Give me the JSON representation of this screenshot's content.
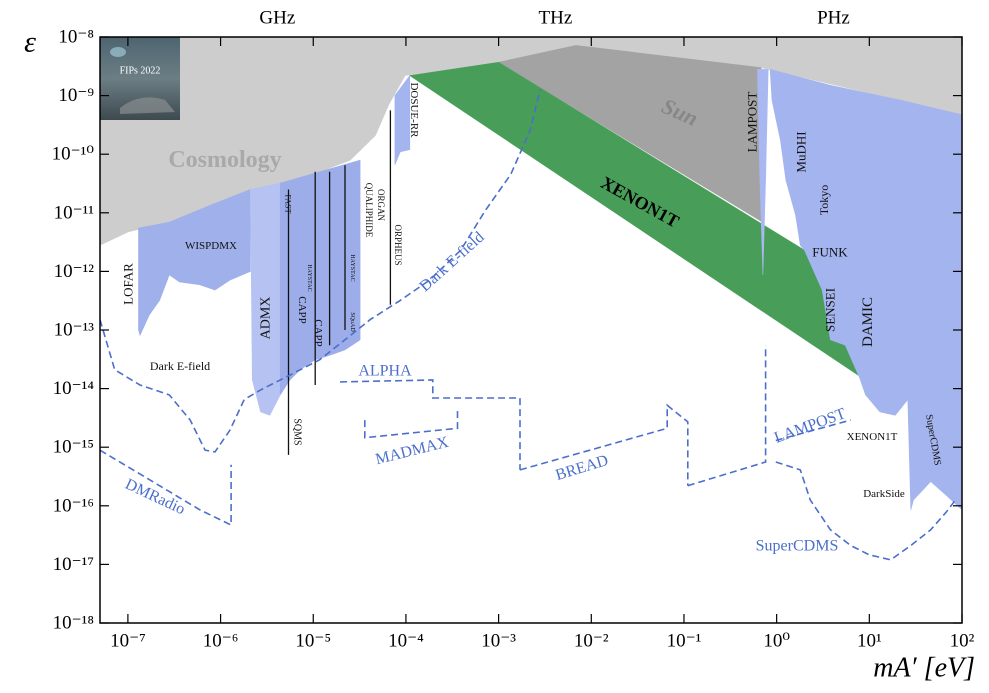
{
  "chart_data": {
    "type": "exclusion",
    "ylabel": "ε",
    "xlabel": "mA′ [eV]",
    "log_x": true,
    "log_y": true,
    "xlim": [
      5e-08,
      100
    ],
    "ylim": [
      1e-18,
      1e-08
    ],
    "xticks": [
      {
        "value": 1e-07,
        "label": "10⁻⁷"
      },
      {
        "value": 1e-06,
        "label": "10⁻⁶"
      },
      {
        "value": 1e-05,
        "label": "10⁻⁵"
      },
      {
        "value": 0.0001,
        "label": "10⁻⁴"
      },
      {
        "value": 0.001,
        "label": "10⁻³"
      },
      {
        "value": 0.01,
        "label": "10⁻²"
      },
      {
        "value": 0.1,
        "label": "10⁻¹"
      },
      {
        "value": 1,
        "label": "10⁰"
      },
      {
        "value": 10,
        "label": "10¹"
      },
      {
        "value": 100,
        "label": "10²"
      }
    ],
    "yticks": [
      {
        "value": 1e-08,
        "label": "10⁻⁸"
      },
      {
        "value": 1e-09,
        "label": "10⁻⁹"
      },
      {
        "value": 1e-10,
        "label": "10⁻¹⁰"
      },
      {
        "value": 1e-11,
        "label": "10⁻¹¹"
      },
      {
        "value": 1e-12,
        "label": "10⁻¹²"
      },
      {
        "value": 1e-13,
        "label": "10⁻¹³"
      },
      {
        "value": 1e-14,
        "label": "10⁻¹⁴"
      },
      {
        "value": 1e-15,
        "label": "10⁻¹⁵"
      },
      {
        "value": 1e-16,
        "label": "10⁻¹⁶"
      },
      {
        "value": 1e-17,
        "label": "10⁻¹⁷"
      },
      {
        "value": 1e-18,
        "label": "10⁻¹⁸"
      }
    ],
    "x2ticks": [
      {
        "value": 4.1e-06,
        "label": "GHz"
      },
      {
        "value": 0.0041,
        "label": "THz"
      },
      {
        "value": 4.1,
        "label": "PHz"
      }
    ],
    "regions": [
      {
        "name": "Cosmology",
        "color": "#cdcdcd",
        "x": [
          5e-08,
          1e-07,
          2.8e-07,
          7.8e-07,
          2.1e-06,
          4.4e-06,
          1.17e-05,
          2.5e-05,
          4.7e-05,
          6.5e-05,
          9.8e-05,
          0.001,
          0.0068,
          0.68,
          100,
          100,
          5e-08
        ],
        "y": [
          2.8e-12,
          4.7e-12,
          6.9e-12,
          1.35e-11,
          2.5e-11,
          3.2e-11,
          5e-11,
          7.9e-11,
          2.1e-10,
          6.9e-10,
          2.2e-09,
          3.7e-09,
          7.2e-09,
          3e-09,
          4.7e-10,
          1e-08,
          1e-08
        ]
      },
      {
        "name": "Sun",
        "color": "#a3a3a3",
        "x": [
          0.001,
          0.0068,
          0.68,
          0.68
        ],
        "y": [
          3.7e-09,
          7.2e-09,
          3e-09,
          7.2e-12
        ]
      },
      {
        "name": "XENON1T",
        "color": "#489e59",
        "x": [
          0.00011,
          0.001,
          2.0,
          8.5
        ],
        "y": [
          2.2e-09,
          3.7e-09,
          2.3e-12,
          1.5e-14
        ]
      },
      {
        "name": "DAMIC",
        "color": "#a4b4ee",
        "x": [
          0.85,
          3.8,
          22,
          100,
          100,
          68,
          46,
          30,
          28,
          26,
          19,
          13,
          9.1,
          7.9,
          5.5,
          3.8,
          3.1,
          2.0,
          1.8,
          1.6,
          1.26,
          1.1,
          0.89
        ],
        "y": [
          2.8e-09,
          1.5e-09,
          8.3e-10,
          4.7e-10,
          8.5e-17,
          1.5e-16,
          2.6e-16,
          1.26e-16,
          8.5e-17,
          6.5e-15,
          3.5e-15,
          4e-15,
          7.8e-15,
          1.5e-14,
          5.5e-14,
          6.8e-14,
          4.8e-13,
          2.3e-12,
          2.8e-12,
          9.1e-12,
          3.6e-11,
          1.7e-10,
          8.3e-10
        ]
      },
      {
        "name": "LAMPOST",
        "color": "#a9b8f0",
        "x": [
          0.62,
          0.81,
          0.76,
          0.71,
          0.66
        ],
        "y": [
          2.8e-09,
          2.8e-09,
          3.6e-11,
          8.7e-13,
          3.6e-11
        ]
      },
      {
        "name": "WISPDMX",
        "color": "#9fb0ea",
        "x": [
          1.3e-07,
          2.8e-07,
          7.8e-07,
          2.1e-06,
          2.1e-06,
          1.26e-06,
          8.7e-07,
          6e-07,
          3.6e-07,
          2.8e-07,
          2.2e-07,
          1.7e-07,
          1.35e-07,
          1.3e-07
        ],
        "y": [
          5.5e-12,
          6.9e-12,
          1.35e-11,
          2.5e-11,
          1e-12,
          7.1e-13,
          4.8e-13,
          5.9e-13,
          6.6e-13,
          8.7e-13,
          3.2e-13,
          1.8e-13,
          8.1e-14,
          1e-13
        ]
      },
      {
        "name": "ADMX",
        "color": "#b6c3f2",
        "x": [
          2.1e-06,
          4.4e-06,
          4.4e-06,
          3.4e-06,
          2.7e-06,
          2.2e-06
        ],
        "y": [
          2.5e-11,
          3.2e-11,
          7.8e-15,
          3.5e-15,
          4e-15,
          1.4e-14
        ]
      },
      {
        "color": "#9cade9",
        "x": [
          4.4e-06,
          1.17e-05,
          3.2e-05,
          3.2e-05,
          2.2e-05,
          1.5e-05,
          1.05e-05,
          7.2e-06,
          5.6e-06,
          4.4e-06
        ],
        "y": [
          3.2e-11,
          5e-11,
          7.9e-11,
          6.8e-14,
          4.6e-14,
          3.7e-14,
          3.1e-14,
          2.1e-14,
          1.4e-14,
          7.8e-15
        ]
      },
      {
        "name": "DOSUE-RR",
        "color": "#a4b4ee",
        "x": [
          7.6e-05,
          0.00011,
          0.00011,
          8.7e-05,
          7.6e-05
        ],
        "y": [
          1e-09,
          2.2e-09,
          1.2e-10,
          1.1e-10,
          6.6e-11
        ]
      }
    ],
    "limits": [
      {
        "color": "#111111",
        "x": [
          5.4e-06,
          5.4e-06,
          null,
          1.05e-05,
          1.05e-05,
          null,
          1.5e-05,
          1.5e-05,
          null,
          2.2e-05,
          2.2e-05,
          null,
          6.8e-05,
          6.8e-05
        ],
        "y": [
          2.5e-11,
          7.4e-16,
          null,
          5e-11,
          1.15e-14,
          null,
          5e-11,
          5.5e-14,
          null,
          6.5e-11,
          1e-13,
          null,
          5.6e-10,
          2.7e-13
        ]
      }
    ],
    "projections": [
      {
        "name": "Dark E-field",
        "color": "#4b6fcb",
        "x": [
          5e-08,
          7.2e-08,
          1.35e-07,
          2.8e-07,
          4.7e-07,
          6.8e-07,
          8.7e-07,
          1.26e-06,
          1.8e-06,
          2.7e-06,
          5.6e-06,
          1.17e-05,
          2.2e-05,
          4.1e-05,
          8.7e-05,
          0.00018,
          0.00039,
          0.00072,
          0.00135,
          0.0022,
          0.0028
        ],
        "y": [
          1.5e-13,
          2.1e-14,
          1.15e-14,
          7.8e-15,
          2.9e-15,
          8.9e-16,
          8.3e-16,
          1.95e-15,
          6.5e-15,
          9.5e-15,
          1.7e-14,
          3.1e-14,
          6.8e-14,
          1.5e-13,
          3.2e-13,
          7.1e-13,
          2.3e-12,
          1.1e-11,
          4.5e-11,
          2.6e-10,
          1.26e-09
        ]
      },
      {
        "name": "DMRadio",
        "color": "#4b6fcb",
        "x": [
          5e-08,
          1.7e-07,
          6e-07,
          1.3e-06,
          1.3e-06
        ],
        "y": [
          8.9e-16,
          2.8e-16,
          8.5e-17,
          4.7e-17,
          5e-16
        ]
      },
      {
        "name": "ALPHA",
        "color": "#4b6fcb",
        "x": [
          1.95e-05,
          0.000195,
          0.000195,
          0.0017,
          0.0017
        ],
        "y": [
          1.3e-14,
          1.4e-14,
          6.9e-15,
          6.9e-15,
          4.1e-16
        ]
      },
      {
        "name": "MADMAX",
        "color": "#4b6fcb",
        "x": [
          3.6e-05,
          3.6e-05,
          0.00036,
          0.00036
        ],
        "y": [
          2.9e-15,
          1.45e-15,
          2.1e-15,
          4.3e-15
        ]
      },
      {
        "name": "BREAD",
        "color": "#4b6fcb",
        "x": [
          0.0017,
          0.066,
          0.066,
          0.11,
          0.11
        ],
        "y": [
          4.1e-16,
          2.1e-15,
          5.2e-15,
          2.7e-15,
          2.2e-16
        ]
      },
      {
        "name": "LAMPOST",
        "color": "#4b6fcb",
        "x": [
          0.11,
          0.76,
          0.76,
          null,
          0.98,
          6.3
        ],
        "y": [
          2.2e-16,
          5.6e-16,
          5.5e-14,
          null,
          1.3e-15,
          2.9e-15
        ]
      },
      {
        "name": "SuperCDMS",
        "color": "#4b6fcb",
        "x": [
          0.98,
          1.8,
          2.3,
          3.8,
          6.3,
          10,
          17,
          28,
          46,
          68,
          85
        ],
        "y": [
          5.6e-16,
          4.1e-16,
          1.26e-16,
          3.9e-17,
          2.1e-17,
          1.45e-17,
          1.2e-17,
          2.1e-17,
          3.9e-17,
          7.9e-17,
          1.26e-16
        ]
      }
    ],
    "annotations": [
      "LOFAR",
      "Dark E-field",
      "FAST",
      "CAPP",
      "CAPP",
      "SQMS",
      "HAYSTAC",
      "HAYSTAC",
      "SQuAD",
      "QUALIPHIDE",
      "ORGAN",
      "ORPHEUS",
      "MuDHI",
      "Tokyo",
      "FUNK",
      "SENSEI",
      "XENON1T",
      "SuperCDMS",
      "DarkSide",
      "FIPs 2022"
    ]
  }
}
